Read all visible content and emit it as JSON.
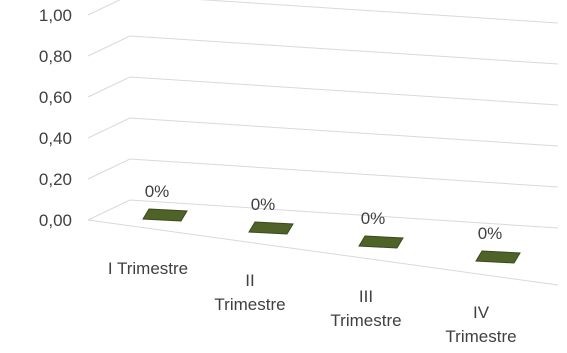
{
  "chart_data": {
    "type": "bar",
    "style": "3d-perspective",
    "categories": [
      "I Trimestre",
      "II\nTrimestre",
      "III\nTrimestre",
      "IV\nTrimestre"
    ],
    "values": [
      0,
      0,
      0,
      0
    ],
    "data_labels": [
      "0%",
      "0%",
      "0%",
      "0%"
    ],
    "yticks": [
      "0,00",
      "0,20",
      "0,40",
      "0,60",
      "0,80",
      "1,00"
    ],
    "ylim": [
      0,
      1
    ],
    "grid": true,
    "bar_color": "#4f6228",
    "bar_edge_color": "#3b4a1c",
    "grid_color": "#d9d9d9",
    "text_color": "#404040"
  }
}
